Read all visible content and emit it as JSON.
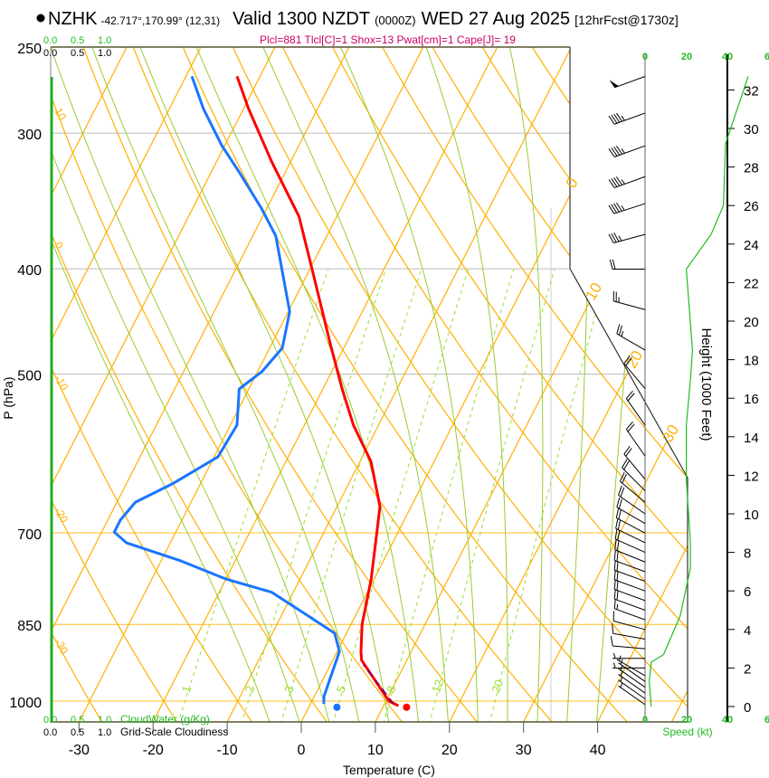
{
  "header": {
    "station": "NZHK",
    "coords": "-42.717°,170.99° (12,31)",
    "valid": "Valid 1300 NZDT",
    "utc": "(0000Z)",
    "date": "WED 27 Aug 2025",
    "forecast": "[12hrFcst@1730z]",
    "indices": "Plcl=881 Tlcl[C]=1 Shox=13 Pwat[cm]=1 Cape[J]= 19"
  },
  "colors": {
    "temperature": "#ff0000",
    "dewpoint": "#1a75ff",
    "parcel": "#800060",
    "isotherm": "#ffb000",
    "moist_adiabat": "#99cc33",
    "mixing_ratio": "#99dd33",
    "speed": "#22bb22",
    "indices": "#cc0066"
  },
  "chart_data": {
    "type": "skew-t",
    "title": "Valid 1300 NZDT (0000Z) WED 27 Aug 2025",
    "xlabel": "Temperature (C)",
    "ylabel": "P (hPa)",
    "y2label": "Height (1000 Feet)",
    "xlim": [
      -34,
      46
    ],
    "ylim_hpa": [
      1045,
      250
    ],
    "x_ticks": [
      "-30",
      "-20",
      "-10",
      "0",
      "10",
      "20",
      "30",
      "40"
    ],
    "x_tick_values": [
      -30,
      -20,
      -10,
      0,
      10,
      20,
      30,
      40
    ],
    "p_ticks": [
      "250",
      "300",
      "400",
      "500",
      "700",
      "850",
      "1000"
    ],
    "p_tick_values": [
      250,
      300,
      400,
      500,
      700,
      850,
      1000
    ],
    "height_ticks": [
      "0",
      "2",
      "4",
      "6",
      "8",
      "10",
      "12",
      "14",
      "16",
      "18",
      "20",
      "22",
      "24",
      "26",
      "28",
      "30",
      "32"
    ],
    "isotherm_labels": [
      "0",
      "10",
      "20",
      "30"
    ],
    "theta_labels": [
      "10",
      "0",
      "-10",
      "-20",
      "-30"
    ],
    "theta_label_values": [
      10,
      0,
      -10,
      -20,
      -30
    ],
    "mixing_ratio_labels": [
      "1",
      "2",
      "3",
      "5",
      "8",
      "12",
      "20"
    ],
    "mixing_ratio_values": [
      1,
      2,
      3,
      5,
      8,
      12,
      20
    ],
    "cloud_scale_top_green": [
      "0.0",
      "0.5",
      "1.0"
    ],
    "cloud_scale_top_black": [
      "0.0",
      "0.5",
      "1.0"
    ],
    "cloud_scale_bottom_green": [
      "0.0",
      "0.5",
      "1.0"
    ],
    "cloud_scale_bottom_black": [
      "0.0",
      "0.5",
      "1.0"
    ],
    "cloudwater_label": "CloudWater (g/Kg)",
    "cloudiness_label": "Grid-Scale Cloudiness",
    "speed_ticks": [
      "0",
      "20",
      "40",
      "6"
    ],
    "speed_label": "Speed (kt)",
    "temperature": [
      [
        1010,
        12.0
      ],
      [
        1000,
        10.4
      ],
      [
        917,
        3.9
      ],
      [
        900,
        3.2
      ],
      [
        850,
        1.5
      ],
      [
        772,
        -0.4
      ],
      [
        662,
        -4.2
      ],
      [
        602,
        -8.5
      ],
      [
        557,
        -13.4
      ],
      [
        516,
        -17.4
      ],
      [
        469,
        -22.1
      ],
      [
        402,
        -29.5
      ],
      [
        358,
        -35.1
      ],
      [
        319,
        -42.5
      ],
      [
        285,
        -49.3
      ],
      [
        266,
        -53.1
      ]
    ],
    "dewpoint": [
      [
        1006,
        1.8
      ],
      [
        990,
        1.3
      ],
      [
        900,
        0.3
      ],
      [
        866,
        -1.6
      ],
      [
        834,
        -6.5
      ],
      [
        794,
        -12.9
      ],
      [
        772,
        -20.0
      ],
      [
        743,
        -27.3
      ],
      [
        715,
        -35.9
      ],
      [
        699,
        -38.3
      ],
      [
        681,
        -38.3
      ],
      [
        656,
        -37.5
      ],
      [
        631,
        -33.8
      ],
      [
        596,
        -29.5
      ],
      [
        557,
        -29.1
      ],
      [
        516,
        -31.3
      ],
      [
        497,
        -29.4
      ],
      [
        473,
        -28.3
      ],
      [
        438,
        -29.8
      ],
      [
        373,
        -36.9
      ],
      [
        352,
        -40.7
      ],
      [
        326,
        -46.2
      ],
      [
        308,
        -50.4
      ],
      [
        285,
        -55.4
      ],
      [
        266,
        -59.2
      ]
    ],
    "parcel": [
      [
        1006,
        11.2
      ],
      [
        926,
        4.5
      ]
    ],
    "surface": {
      "pressure": 1013,
      "temperature": 13.2,
      "dewpoint": 3.8
    },
    "wind_speed_profile": [
      [
        0,
        3
      ],
      [
        1.3,
        2
      ],
      [
        2.3,
        3
      ],
      [
        2.7,
        9
      ],
      [
        4.7,
        17
      ],
      [
        7.2,
        22
      ],
      [
        8.5,
        22
      ],
      [
        11.8,
        20
      ],
      [
        14.6,
        20
      ],
      [
        17,
        22
      ],
      [
        18.5,
        23
      ],
      [
        22.7,
        20
      ],
      [
        24.5,
        32
      ],
      [
        26,
        38
      ],
      [
        29.2,
        39
      ],
      [
        32.7,
        50
      ]
    ],
    "wind_barbs": [
      [
        32.7,
        250,
        50
      ],
      [
        30.8,
        250,
        45
      ],
      [
        29.1,
        250,
        45
      ],
      [
        27.5,
        250,
        45
      ],
      [
        26.1,
        252,
        45
      ],
      [
        24.5,
        255,
        35
      ],
      [
        22.7,
        270,
        20
      ],
      [
        20.6,
        285,
        25
      ],
      [
        18.5,
        300,
        25
      ],
      [
        16.5,
        320,
        20
      ],
      [
        14.6,
        325,
        20
      ],
      [
        13.0,
        325,
        20
      ],
      [
        11.8,
        320,
        20
      ],
      [
        11.2,
        315,
        20
      ],
      [
        10.6,
        310,
        20
      ],
      [
        10.0,
        305,
        20
      ],
      [
        9.5,
        300,
        20
      ],
      [
        9.0,
        298,
        22
      ],
      [
        8.5,
        296,
        22
      ],
      [
        8.0,
        294,
        22
      ],
      [
        7.5,
        292,
        22
      ],
      [
        7.0,
        290,
        22
      ],
      [
        6.5,
        290,
        20
      ],
      [
        6.0,
        290,
        20
      ],
      [
        5.5,
        290,
        18
      ],
      [
        5.0,
        290,
        18
      ],
      [
        4.5,
        290,
        15
      ],
      [
        4.0,
        285,
        12
      ],
      [
        3.5,
        280,
        10
      ],
      [
        3.0,
        275,
        8
      ],
      [
        2.5,
        270,
        5
      ],
      [
        2.0,
        270,
        5
      ],
      [
        1.6,
        300,
        5
      ],
      [
        1.3,
        305,
        5
      ],
      [
        1.0,
        305,
        5
      ],
      [
        0.7,
        305,
        5
      ],
      [
        0.4,
        305,
        5
      ],
      [
        0.1,
        305,
        5
      ]
    ]
  }
}
